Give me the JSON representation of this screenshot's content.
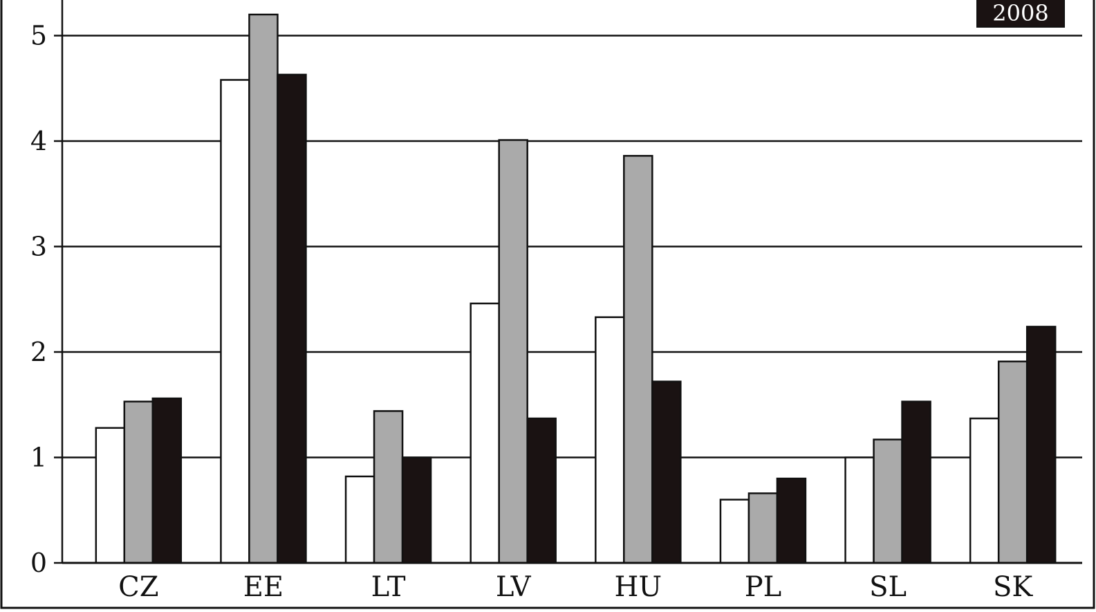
{
  "chart_data": {
    "type": "bar",
    "title": "",
    "xlabel": "",
    "ylabel": "",
    "ylim": [
      0,
      5.5
    ],
    "yticks": [
      0,
      1,
      2,
      3,
      4,
      5
    ],
    "grid": true,
    "legend_position": "top-right",
    "categories": [
      "CZ",
      "EE",
      "LT",
      "LV",
      "HU",
      "PL",
      "SL",
      "SK"
    ],
    "series": [
      {
        "name": "",
        "color": "#ffffff",
        "values": [
          1.28,
          4.58,
          0.82,
          2.46,
          2.33,
          0.6,
          1.0,
          1.37
        ]
      },
      {
        "name": "",
        "color": "#aaaaaa",
        "values": [
          1.53,
          5.2,
          1.44,
          4.01,
          3.86,
          0.66,
          1.17,
          1.91
        ]
      },
      {
        "name": "2008",
        "color": "#1a1212",
        "values": [
          1.56,
          4.63,
          1.0,
          1.37,
          1.72,
          0.8,
          1.53,
          2.24
        ]
      }
    ]
  }
}
